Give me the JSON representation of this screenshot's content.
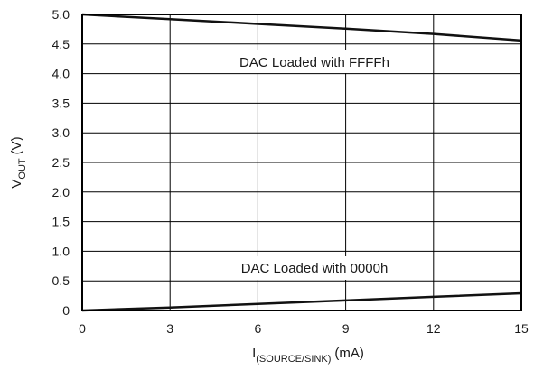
{
  "chart_data": {
    "type": "line",
    "xlabel": {
      "main": "I",
      "sub": "(SOURCE/SINK)",
      "unit": "(mA)"
    },
    "ylabel": {
      "main": "V",
      "sub": "OUT",
      "unit": "(V)"
    },
    "xlim": [
      0,
      15
    ],
    "ylim": [
      0,
      5.0
    ],
    "x_ticks": [
      "0",
      "3",
      "6",
      "9",
      "12",
      "15"
    ],
    "y_ticks": [
      "0",
      "0.5",
      "1.0",
      "1.5",
      "2.0",
      "2.5",
      "3.0",
      "3.5",
      "4.0",
      "4.5",
      "5.0"
    ],
    "grid": true,
    "series": [
      {
        "name": "DAC Loaded with FFFFh",
        "x": [
          0,
          3,
          6,
          9,
          12,
          15
        ],
        "y": [
          5.0,
          4.92,
          4.84,
          4.76,
          4.67,
          4.56
        ]
      },
      {
        "name": "DAC Loaded with 0000h",
        "x": [
          0,
          3,
          6,
          9,
          12,
          15
        ],
        "y": [
          0.0,
          0.05,
          0.11,
          0.17,
          0.23,
          0.29
        ]
      }
    ],
    "annotations": [
      "DAC Loaded with FFFFh",
      "DAC Loaded with 0000h"
    ]
  }
}
